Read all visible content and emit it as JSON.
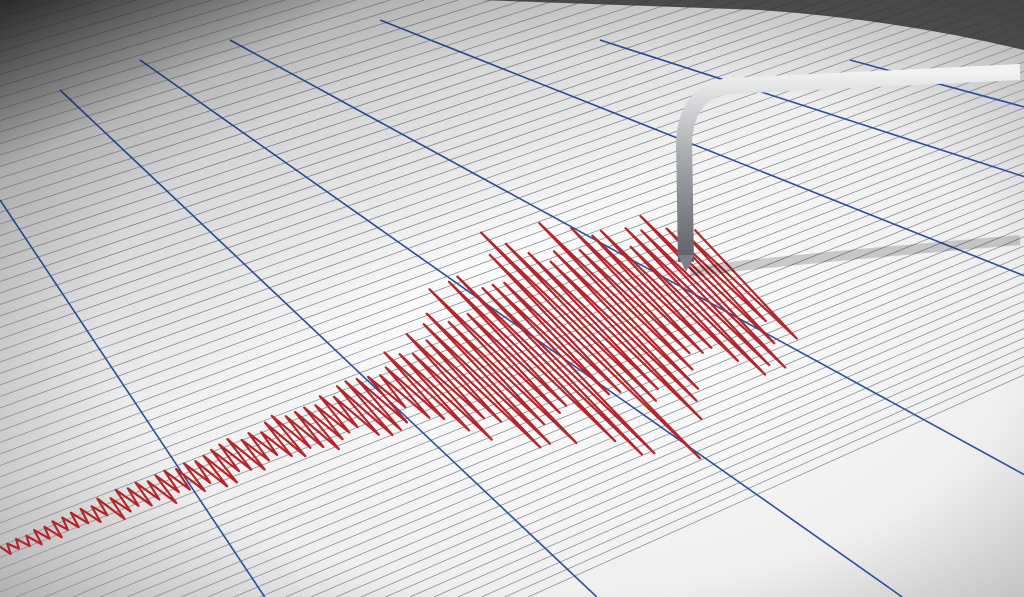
{
  "image": {
    "subject": "seismograph",
    "colors": {
      "paper": "#f4f4f4",
      "grid_line": "#8a8f99",
      "major_line": "#2c4f9e",
      "trace": "#b3262a",
      "needle": "#b9bcc0",
      "shadow": "#3a3a3a"
    }
  }
}
